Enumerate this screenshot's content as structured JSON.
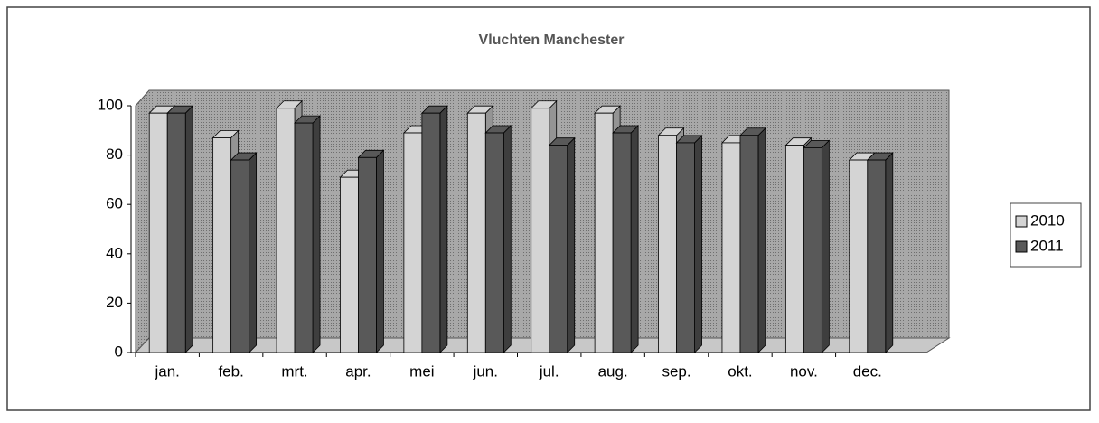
{
  "chart_data": {
    "type": "bar3d",
    "title": "Vluchten Manchester",
    "categories": [
      "jan.",
      "feb.",
      "mrt.",
      "apr.",
      "mei",
      "jun.",
      "jul.",
      "aug.",
      "sep.",
      "okt.",
      "nov.",
      "dec."
    ],
    "series": [
      {
        "name": "2010",
        "color": "#d4d4d4",
        "values": [
          97,
          87,
          99,
          71,
          89,
          97,
          99,
          97,
          88,
          85,
          84,
          78
        ]
      },
      {
        "name": "2011",
        "color": "#595959",
        "values": [
          97,
          78,
          93,
          79,
          97,
          89,
          84,
          89,
          85,
          88,
          83,
          78
        ]
      }
    ],
    "ylim": [
      0,
      100
    ],
    "yticks": [
      0,
      20,
      40,
      60,
      80,
      100
    ],
    "grid": false,
    "legend": "right"
  }
}
